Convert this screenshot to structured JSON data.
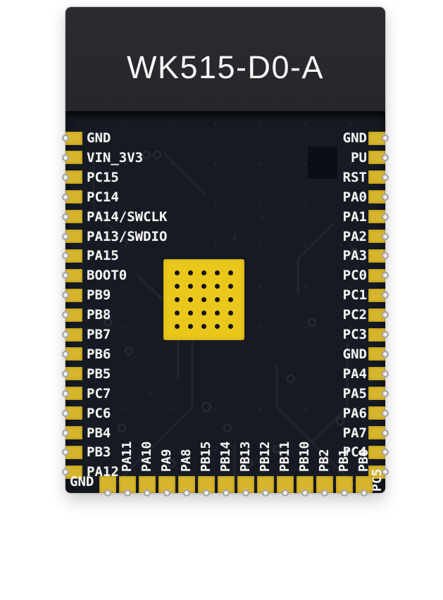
{
  "title": "WK515-D0-A",
  "pins": {
    "left": [
      "GND",
      "VIN_3V3",
      "PC15",
      "PC14",
      "PA14/SWCLK",
      "PA13/SWDIO",
      "PA15",
      "BOOT0",
      "PB9",
      "PB8",
      "PB7",
      "PB6",
      "PB5",
      "PC7",
      "PC6",
      "PB4",
      "PB3",
      "PA12"
    ],
    "right": [
      "GND",
      "PU",
      "RST",
      "PA0",
      "PA1",
      "PA2",
      "PA3",
      "PC0",
      "PC1",
      "PC2",
      "PC3",
      "GND",
      "PA4",
      "PA5",
      "PA6",
      "PA7",
      "PC4",
      "PC5"
    ],
    "bottom": [
      "GND",
      "PA11",
      "PA10",
      "PA9",
      "PA8",
      "PB15",
      "PB14",
      "PB13",
      "PB12",
      "PB11",
      "PB10",
      "PB2",
      "PB1",
      "PB0"
    ]
  },
  "colors": {
    "pad": "#d6b52c",
    "thermal": "#eac71b",
    "pcb": "#161a23",
    "shield": "#2b2b30",
    "silkscreen": "#f3f3f1",
    "title_color": "#f8f8f8"
  }
}
